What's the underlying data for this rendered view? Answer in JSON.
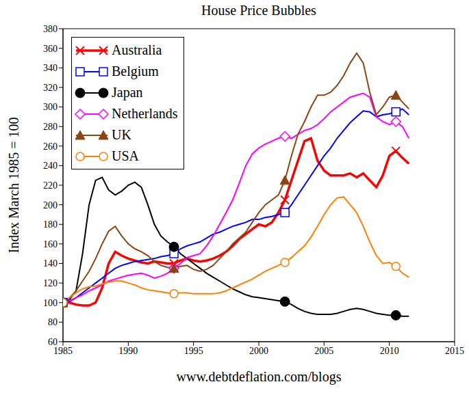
{
  "chart_data": {
    "type": "line",
    "title": "House Price Bubbles",
    "y_label": "Index March 1985 = 100",
    "annotation": "www.debtdeflation.com/blogs",
    "x": [
      1985,
      1985.5,
      1986,
      1986.5,
      1987,
      1987.5,
      1988,
      1988.5,
      1989,
      1989.5,
      1990,
      1990.5,
      1991,
      1991.5,
      1992,
      1992.5,
      1993,
      1993.5,
      1994,
      1994.5,
      1995,
      1995.5,
      1996,
      1996.5,
      1997,
      1997.5,
      1998,
      1998.5,
      1999,
      1999.5,
      2000,
      2000.5,
      2001,
      2001.5,
      2002,
      2002.5,
      2003,
      2003.5,
      2004,
      2004.5,
      2005,
      2005.5,
      2006,
      2006.5,
      2007,
      2007.5,
      2008,
      2008.5,
      2009,
      2009.5,
      2010,
      2010.5,
      2011,
      2011.5
    ],
    "series": [
      {
        "name": "Australia",
        "color": "#ff0000",
        "marker": "x",
        "line_style": "solid",
        "values": [
          100,
          100,
          98,
          97,
          97,
          100,
          115,
          140,
          152,
          148,
          145,
          143,
          141,
          140,
          142,
          141,
          140,
          140,
          143,
          145,
          143,
          142,
          143,
          145,
          148,
          152,
          158,
          165,
          170,
          175,
          180,
          178,
          182,
          192,
          205,
          225,
          245,
          265,
          268,
          245,
          235,
          230,
          230,
          230,
          232,
          228,
          232,
          225,
          218,
          230,
          250,
          255,
          248,
          242
        ]
      },
      {
        "name": "Belgium",
        "color": "#0000ff",
        "marker": "square",
        "line_style": "solid",
        "values": [
          100,
          101,
          105,
          110,
          115,
          120,
          125,
          130,
          135,
          138,
          140,
          142,
          143,
          144,
          145,
          147,
          148,
          150,
          155,
          158,
          160,
          162,
          166,
          170,
          172,
          175,
          178,
          180,
          182,
          185,
          185,
          187,
          188,
          190,
          192,
          200,
          210,
          220,
          230,
          240,
          250,
          258,
          268,
          276,
          284,
          290,
          296,
          295,
          290,
          292,
          293,
          295,
          298,
          292
        ]
      },
      {
        "name": "Japan",
        "color": "#000000",
        "marker": "circle",
        "line_style": "solid",
        "values": [
          100,
          103,
          112,
          150,
          200,
          225,
          228,
          215,
          210,
          214,
          220,
          223,
          218,
          200,
          180,
          168,
          162,
          157,
          150,
          145,
          140,
          135,
          130,
          126,
          122,
          118,
          114,
          111,
          108,
          106,
          105,
          104,
          103,
          102,
          101,
          98,
          94,
          91,
          89,
          88,
          88,
          88,
          89,
          91,
          93,
          94,
          93,
          91,
          89,
          88,
          87,
          87,
          86,
          86
        ]
      },
      {
        "name": "Netherlands",
        "color": "#ff00ff",
        "marker": "diamond",
        "line_style": "solid",
        "values": [
          100,
          102,
          105,
          108,
          112,
          115,
          118,
          122,
          124,
          126,
          128,
          129,
          130,
          128,
          125,
          127,
          130,
          135,
          140,
          146,
          148,
          150,
          158,
          168,
          180,
          192,
          205,
          222,
          240,
          252,
          258,
          262,
          265,
          268,
          270,
          268,
          272,
          276,
          278,
          282,
          288,
          295,
          300,
          305,
          310,
          312,
          314,
          310,
          290,
          285,
          282,
          285,
          280,
          268
        ]
      },
      {
        "name": "UK",
        "color": "#8b4513",
        "marker": "triangle",
        "line_style": "solid",
        "values": [
          100,
          105,
          112,
          122,
          132,
          145,
          160,
          173,
          178,
          168,
          160,
          155,
          152,
          148,
          142,
          138,
          136,
          135,
          137,
          138,
          134,
          132,
          134,
          138,
          145,
          152,
          160,
          166,
          172,
          182,
          192,
          200,
          205,
          210,
          225,
          250,
          272,
          285,
          300,
          312,
          312,
          315,
          322,
          332,
          345,
          355,
          345,
          315,
          292,
          300,
          310,
          312,
          305,
          298
        ]
      },
      {
        "name": "USA",
        "color": "#ff8000",
        "marker": "circle_open",
        "line_style": "solid",
        "values": [
          100,
          105,
          110,
          114,
          116,
          117,
          119,
          121,
          122,
          122,
          120,
          118,
          115,
          113,
          112,
          111,
          110,
          109,
          110,
          110,
          109,
          109,
          109,
          109,
          110,
          112,
          115,
          118,
          121,
          124,
          128,
          132,
          135,
          138,
          141,
          146,
          152,
          158,
          167,
          178,
          190,
          200,
          207,
          208,
          200,
          192,
          178,
          162,
          148,
          140,
          141,
          137,
          130,
          126
        ]
      }
    ],
    "xlim": [
      1985,
      2015
    ],
    "xticks": [
      1985,
      1990,
      1995,
      2000,
      2005,
      2010,
      2015
    ],
    "ylim": [
      60,
      380
    ],
    "yticks": [
      60,
      80,
      100,
      120,
      140,
      160,
      180,
      200,
      220,
      240,
      260,
      280,
      300,
      320,
      340,
      360,
      380
    ],
    "grid": false,
    "legend": "upper left"
  }
}
